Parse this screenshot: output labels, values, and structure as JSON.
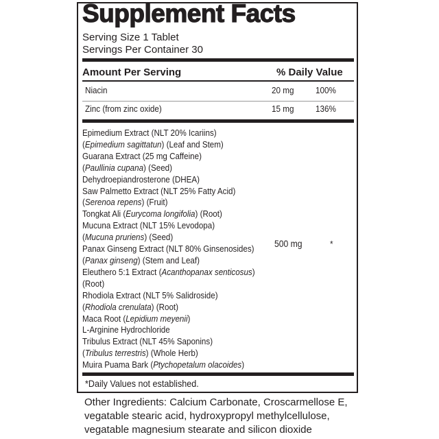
{
  "title": "Supplement Facts",
  "serving_size": "Serving Size 1 Tablet",
  "servings_per_container": "Servings Per Container 30",
  "header": {
    "amount": "Amount Per Serving",
    "daily_value": "% Daily Value"
  },
  "nutrients": [
    {
      "name": "Niacin",
      "amount": "20 mg",
      "dv": "100%"
    },
    {
      "name": "Zinc (from zinc oxide)",
      "amount": "15 mg",
      "dv": "136%"
    }
  ],
  "blend": {
    "amount": "500 mg",
    "dv": "*",
    "lines": [
      [
        {
          "t": "Epimedium Extract (NLT 20% Icariins)",
          "i": false
        }
      ],
      [
        {
          "t": "(",
          "i": false
        },
        {
          "t": "Epimedium sagittatun",
          "i": true
        },
        {
          "t": ") (Leaf and Stem)",
          "i": false
        }
      ],
      [
        {
          "t": "Guarana Extract (25 mg Caffeine)",
          "i": false
        }
      ],
      [
        {
          "t": "(",
          "i": false
        },
        {
          "t": "Paullinia cupana",
          "i": true
        },
        {
          "t": ")  (Seed)",
          "i": false
        }
      ],
      [
        {
          "t": "Dehydroepiandrosterone (DHEA)",
          "i": false
        }
      ],
      [
        {
          "t": "Saw Palmetto Extract (NLT 25% Fatty Acid)",
          "i": false
        }
      ],
      [
        {
          "t": "(",
          "i": false
        },
        {
          "t": "Serenoa repens",
          "i": true
        },
        {
          "t": ") (Fruit)",
          "i": false
        }
      ],
      [
        {
          "t": "Tongkat Ali (",
          "i": false
        },
        {
          "t": "Eurycoma longifolia",
          "i": true
        },
        {
          "t": ") (Root)",
          "i": false
        }
      ],
      [
        {
          "t": "Mucuna Extract (NLT 15% Levodopa)",
          "i": false
        }
      ],
      [
        {
          "t": "(",
          "i": false
        },
        {
          "t": "Mucuna pruriens",
          "i": true
        },
        {
          "t": ") (Seed)",
          "i": false
        }
      ],
      [
        {
          "t": "Panax Ginseng Extract (NLT 80% Ginsenosides)",
          "i": false
        }
      ],
      [
        {
          "t": "(",
          "i": false
        },
        {
          "t": "Panax ginseng",
          "i": true
        },
        {
          "t": ") (Stem and Leaf)",
          "i": false
        }
      ],
      [
        {
          "t": "Eleuthero 5:1 Extract (",
          "i": false
        },
        {
          "t": "Acanthopanax senticosus",
          "i": true
        },
        {
          "t": ")",
          "i": false
        }
      ],
      [
        {
          "t": "(Root)",
          "i": false
        }
      ],
      [
        {
          "t": "Rhodiola Extract (NLT 5% Salidroside)",
          "i": false
        }
      ],
      [
        {
          "t": "(",
          "i": false
        },
        {
          "t": "Rhodiola crenulata",
          "i": true
        },
        {
          "t": ") (Root)",
          "i": false
        }
      ],
      [
        {
          "t": "Maca Root (",
          "i": false
        },
        {
          "t": "Lepidium meyenii",
          "i": true
        },
        {
          "t": ")",
          "i": false
        }
      ],
      [
        {
          "t": "L-Arginine Hydrochloride",
          "i": false
        }
      ],
      [
        {
          "t": "Tribulus Extract (NLT 45% Saponins)",
          "i": false
        }
      ],
      [
        {
          "t": "(",
          "i": false
        },
        {
          "t": "Tribulus terrestris",
          "i": true
        },
        {
          "t": ") (Whole Herb)",
          "i": false
        }
      ],
      [
        {
          "t": "Muira Puama Bark (",
          "i": false
        },
        {
          "t": "Ptychopetalum olacoides",
          "i": true
        },
        {
          "t": ")",
          "i": false
        }
      ]
    ]
  },
  "footnote": "*Daily Values not established.",
  "other_ingredients": [
    "Other Ingredients: Calcium Carbonate, Croscarmellose E,",
    "vegatable stearic acid, hydroxypropyl methylcellulose,",
    "vegatable magnesium stearate and silicon dioxide"
  ]
}
